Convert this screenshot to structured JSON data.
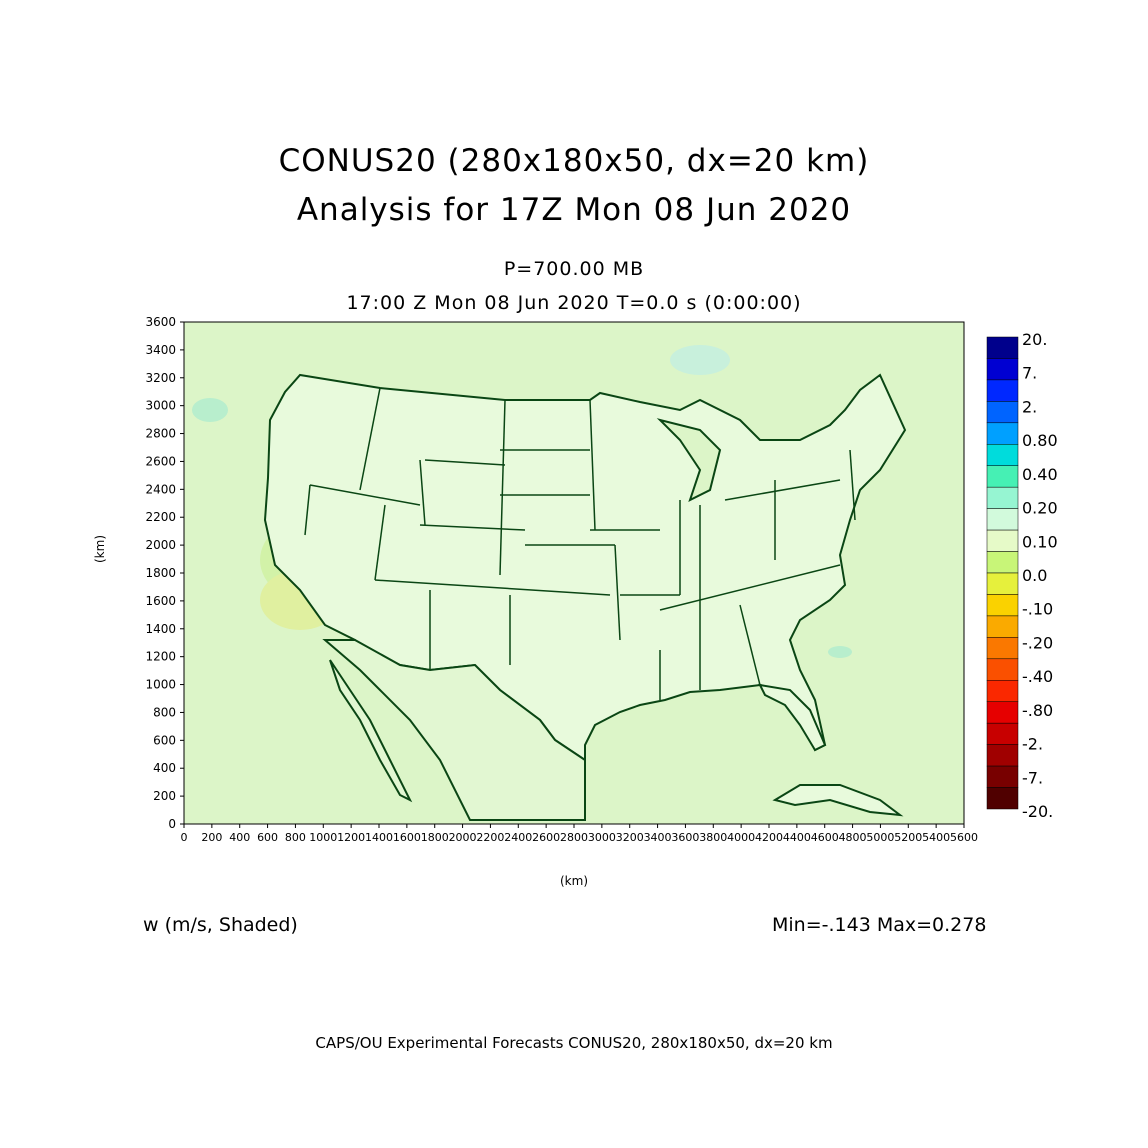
{
  "header": {
    "title_line1": "CONUS20 (280x180x50, dx=20 km)",
    "title_line2": "Analysis for 17Z Mon 08 Jun 2020",
    "level": "P=700.00 MB",
    "valid_time": "17:00 Z Mon 08 Jun 2020    T=0.0 s (0:00:00)"
  },
  "axes": {
    "x_label": "(km)",
    "y_label": "(km)",
    "x_ticks": [
      "0",
      "200",
      "400",
      "600",
      "800",
      "1000",
      "1200",
      "1400",
      "1600",
      "1800",
      "2000",
      "2200",
      "2400",
      "2600",
      "2800",
      "3000",
      "3200",
      "3400",
      "3600",
      "3800",
      "4000",
      "4200",
      "4400",
      "4600",
      "4800",
      "5000",
      "5200",
      "5400",
      "5600"
    ],
    "y_ticks": [
      "0",
      "200",
      "400",
      "600",
      "800",
      "1000",
      "1200",
      "1400",
      "1600",
      "1800",
      "2000",
      "2200",
      "2400",
      "2600",
      "2800",
      "3000",
      "3200",
      "3400",
      "3600"
    ],
    "x_range": [
      0,
      5600
    ],
    "y_range": [
      0,
      3600
    ]
  },
  "colorbar": {
    "labels": [
      "20.",
      "7.",
      "2.",
      "0.80",
      "0.40",
      "0.20",
      "0.10",
      "0.0",
      "-.10",
      "-.20",
      "-.40",
      "-.80",
      "-2.",
      "-7.",
      "-20."
    ],
    "colors": [
      "#00008c",
      "#0000d2",
      "#0028ff",
      "#0064ff",
      "#00a0ff",
      "#00dcdc",
      "#46f0b4",
      "#96f5d2",
      "#d2fadc",
      "#e6fac8",
      "#c8f578",
      "#e6f03c",
      "#fad200",
      "#faaa00",
      "#fa7800",
      "#fa5000",
      "#fa2800",
      "#e60000",
      "#c80000",
      "#a00000",
      "#780000",
      "#500000"
    ]
  },
  "field": {
    "name": "w (m/s, Shaded)",
    "minmax": "Min=-.143 Max=0.278"
  },
  "footer": "CAPS/OU Experimental Forecasts  CONUS20, 280x180x50, dx=20 km",
  "map": {
    "background_color": "#dcf5c8",
    "land_fill_color": "#e8fadc",
    "boundary_color": "#0a4614"
  }
}
